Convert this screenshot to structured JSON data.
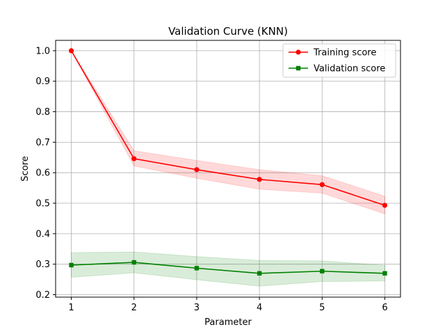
{
  "chart_data": {
    "type": "line",
    "title": "Validation Curve (KNN)",
    "xlabel": "Parameter",
    "ylabel": "Score",
    "x": [
      1,
      2,
      3,
      4,
      5,
      6
    ],
    "xticks": [
      "1",
      "2",
      "3",
      "4",
      "5",
      "6"
    ],
    "yticks": [
      "0.2",
      "0.3",
      "0.4",
      "0.5",
      "0.6",
      "0.7",
      "0.8",
      "0.9",
      "1.0"
    ],
    "xlim": [
      0.75,
      6.25
    ],
    "ylim": [
      0.192,
      1.034
    ],
    "grid": true,
    "legend_position": "top-right",
    "series": [
      {
        "name": "Training score",
        "color": "#ff0000",
        "marker": "circle",
        "values": [
          1.0,
          0.646,
          0.61,
          0.578,
          0.561,
          0.493
        ],
        "band_lower": [
          1.0,
          0.622,
          0.582,
          0.546,
          0.533,
          0.465
        ],
        "band_upper": [
          1.0,
          0.672,
          0.64,
          0.61,
          0.59,
          0.523
        ]
      },
      {
        "name": "Validation score",
        "color": "#008000",
        "marker": "square",
        "values": [
          0.297,
          0.306,
          0.287,
          0.27,
          0.277,
          0.27
        ],
        "band_lower": [
          0.257,
          0.272,
          0.249,
          0.228,
          0.243,
          0.245
        ],
        "band_upper": [
          0.338,
          0.34,
          0.325,
          0.312,
          0.311,
          0.296
        ]
      }
    ]
  }
}
